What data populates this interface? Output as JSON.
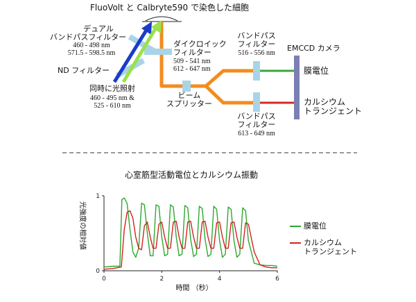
{
  "diagram": {
    "cells_label": "FluoVolt と Calbryte590 で染色した細胞",
    "dual_bp_title_1": "デュアル",
    "dual_bp_title_2": "バンドパスフィルター",
    "dual_bp_range_1": "460 - 498 nm",
    "dual_bp_range_2": "571.5 - 598.5 nm",
    "nd_filter": "ND フィルター",
    "excitation_title": "同時に光照射",
    "excitation_range_1": "460 - 495 nm &",
    "excitation_range_2": "525 - 610 nm",
    "dichroic_title_1": "ダイクロイック",
    "dichroic_title_2": "フィルター",
    "dichroic_range_1": "509 - 541 nm",
    "dichroic_range_2": "612 - 647 nm",
    "beam_splitter_1": "ビーム",
    "beam_splitter_2": "スプリッター",
    "bp_top_title_1": "バンドパス",
    "bp_top_title_2": "フィルター",
    "bp_top_range": "516 - 556 nm",
    "bp_bottom_title_1": "バンドパス",
    "bp_bottom_title_2": "フィルター",
    "bp_bottom_range": "613 - 649 nm",
    "camera": "EMCCD カメラ",
    "output_membrane": "膜電位",
    "output_calcium_1": "カルシウム",
    "output_calcium_2": "トランジェント",
    "colors": {
      "blue_light": "#1a3cc8",
      "green_light": "#99e24a",
      "orange_light": "#f28c1e",
      "green_output": "#3aa63a",
      "red_output": "#d42a1e",
      "filter": "#a9d4e6",
      "camera": "#7b80b3"
    }
  },
  "chart_data": {
    "type": "line",
    "title": "心室筋型活動電位とカルシウム振動",
    "xlabel": "時間 （秒）",
    "ylabel": "光強度の相対値",
    "xlim": [
      0,
      6
    ],
    "ylim": [
      0,
      1
    ],
    "xticks": [
      "0",
      "2",
      "4",
      "6"
    ],
    "yticks": [
      "0",
      "1"
    ],
    "legend_position": "right",
    "series": [
      {
        "name": "膜電位",
        "color": "#2ea82e",
        "x": [
          0,
          0.3,
          0.55,
          0.62,
          0.7,
          0.8,
          0.9,
          1.0,
          1.1,
          1.2,
          1.3,
          1.4,
          1.5,
          1.6,
          1.7,
          1.8,
          1.9,
          2.0,
          2.1,
          2.2,
          2.3,
          2.4,
          2.5,
          2.6,
          2.7,
          2.8,
          2.9,
          3.0,
          3.1,
          3.2,
          3.3,
          3.4,
          3.5,
          3.6,
          3.7,
          3.8,
          3.9,
          4.0,
          4.1,
          4.2,
          4.3,
          4.4,
          4.5,
          4.6,
          4.7,
          4.8,
          4.9,
          5.0,
          5.2,
          5.4,
          5.6,
          5.8,
          6.0
        ],
        "values": [
          0.05,
          0.06,
          0.06,
          0.95,
          0.97,
          0.9,
          0.55,
          0.25,
          0.18,
          0.3,
          0.9,
          0.88,
          0.5,
          0.2,
          0.2,
          0.88,
          0.86,
          0.45,
          0.2,
          0.22,
          0.88,
          0.85,
          0.45,
          0.2,
          0.22,
          0.87,
          0.84,
          0.42,
          0.19,
          0.22,
          0.86,
          0.83,
          0.42,
          0.19,
          0.22,
          0.86,
          0.82,
          0.4,
          0.18,
          0.22,
          0.85,
          0.82,
          0.4,
          0.18,
          0.22,
          0.84,
          0.8,
          0.4,
          0.1,
          0.08,
          0.07,
          0.07,
          0.06
        ]
      },
      {
        "name": "カルシウムトランジェント",
        "color": "#d42020",
        "x": [
          0,
          0.3,
          0.6,
          0.7,
          0.8,
          0.9,
          1.0,
          1.1,
          1.2,
          1.3,
          1.4,
          1.5,
          1.6,
          1.7,
          1.8,
          1.9,
          2.0,
          2.1,
          2.2,
          2.3,
          2.4,
          2.5,
          2.6,
          2.7,
          2.8,
          2.9,
          3.0,
          3.1,
          3.2,
          3.3,
          3.4,
          3.5,
          3.6,
          3.7,
          3.8,
          3.9,
          4.0,
          4.1,
          4.2,
          4.3,
          4.4,
          4.5,
          4.6,
          4.7,
          4.8,
          4.9,
          5.0,
          5.2,
          5.4,
          5.6,
          5.8,
          6.0
        ],
        "values": [
          0.02,
          0.03,
          0.05,
          0.55,
          0.78,
          0.8,
          0.7,
          0.45,
          0.3,
          0.28,
          0.6,
          0.65,
          0.45,
          0.3,
          0.3,
          0.62,
          0.65,
          0.45,
          0.3,
          0.3,
          0.65,
          0.66,
          0.45,
          0.3,
          0.3,
          0.65,
          0.66,
          0.45,
          0.3,
          0.3,
          0.65,
          0.66,
          0.45,
          0.3,
          0.3,
          0.64,
          0.65,
          0.45,
          0.3,
          0.3,
          0.64,
          0.65,
          0.45,
          0.3,
          0.3,
          0.64,
          0.62,
          0.25,
          0.08,
          0.05,
          0.04,
          0.04
        ]
      }
    ]
  }
}
